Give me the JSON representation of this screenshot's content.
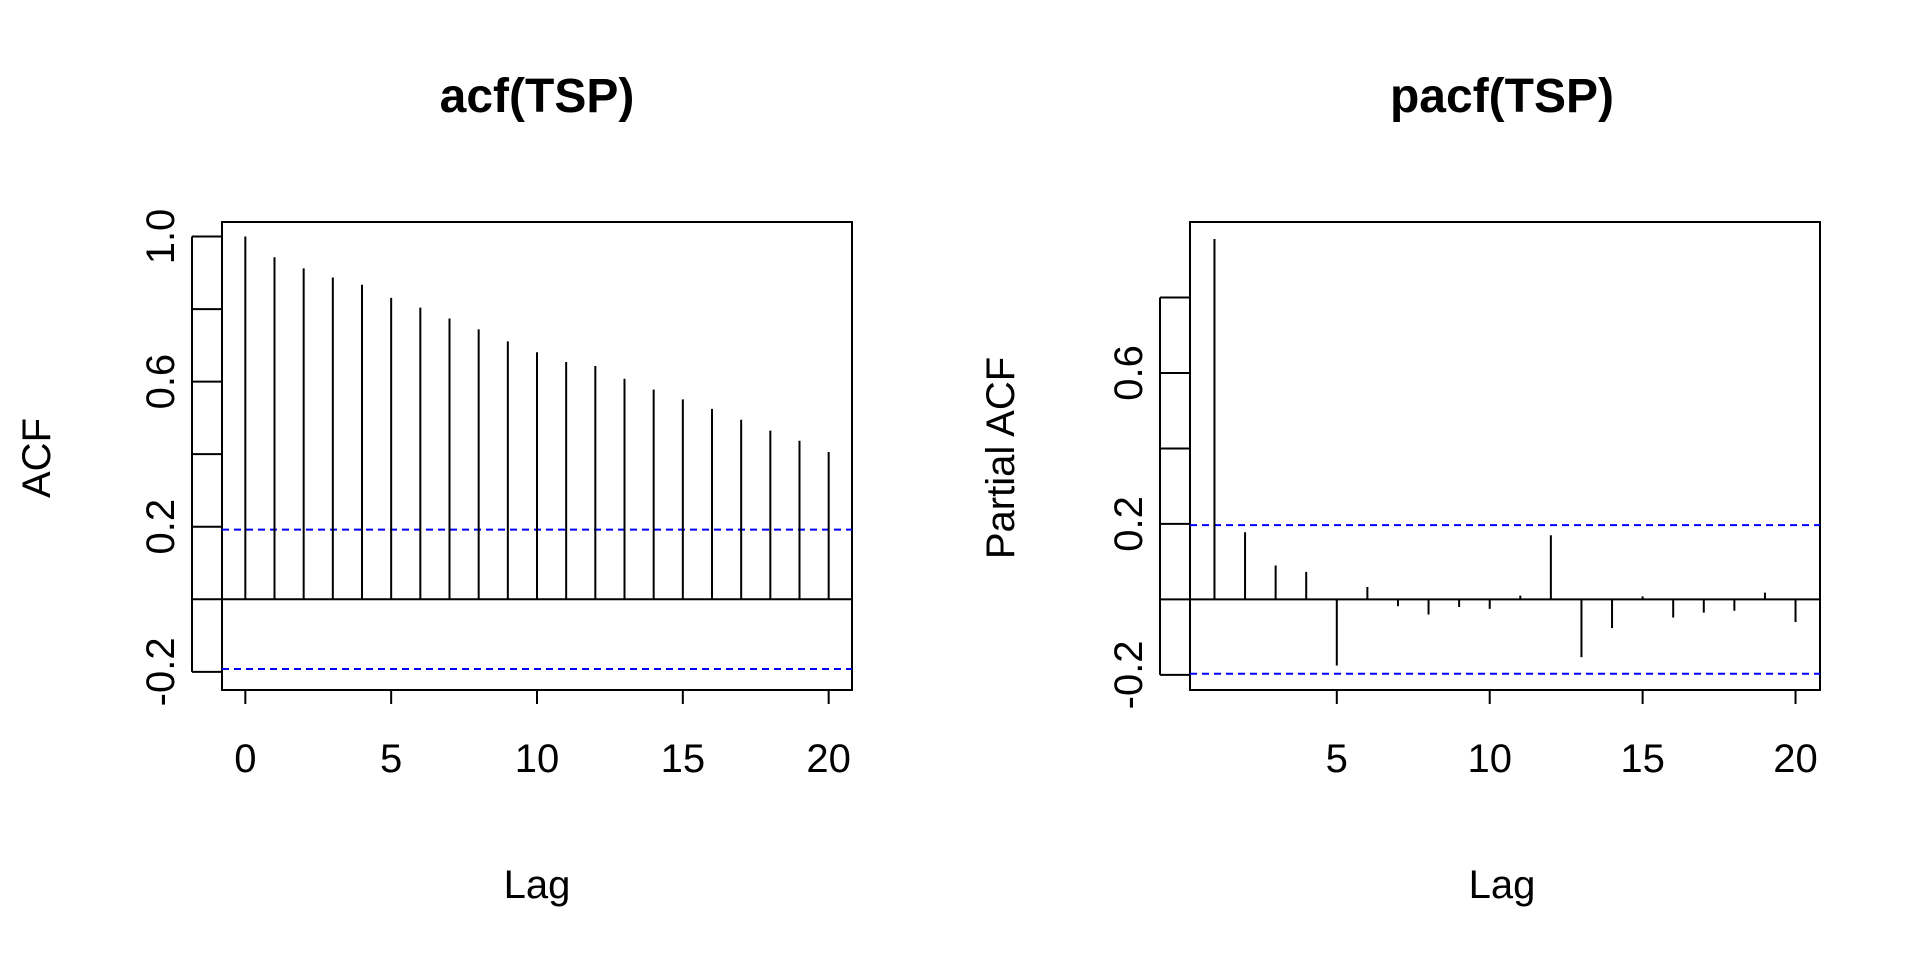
{
  "chart_data": [
    {
      "id": "acf",
      "type": "bar",
      "title": "acf(TSP)",
      "xlabel": "Lag",
      "ylabel": "ACF",
      "xlim": [
        -0.8,
        20.8
      ],
      "ylim": [
        -0.25,
        1.04
      ],
      "x_ticks": [
        0,
        5,
        10,
        15,
        20
      ],
      "y_ticks": [
        -0.2,
        0.2,
        0.6,
        1.0
      ],
      "y_ticks_minor": [
        0.0,
        0.4,
        0.8
      ],
      "y_tick_labels": [
        "-0.2",
        "0.2",
        "0.6",
        "1.0"
      ],
      "ci": 0.192,
      "colors": {
        "bars": "#000000",
        "ci": "#0000ff"
      },
      "lags": [
        0,
        1,
        2,
        3,
        4,
        5,
        6,
        7,
        8,
        9,
        10,
        11,
        12,
        13,
        14,
        15,
        16,
        17,
        18,
        19,
        20
      ],
      "values": [
        1.0,
        0.943,
        0.912,
        0.887,
        0.867,
        0.831,
        0.804,
        0.774,
        0.744,
        0.711,
        0.681,
        0.654,
        0.643,
        0.608,
        0.578,
        0.551,
        0.525,
        0.495,
        0.465,
        0.437,
        0.406
      ]
    },
    {
      "id": "pacf",
      "type": "bar",
      "title": "pacf(TSP)",
      "xlabel": "Lag",
      "ylabel": "Partial ACF",
      "xlim": [
        0.2,
        20.8
      ],
      "ylim": [
        -0.24,
        1.0
      ],
      "x_ticks": [
        5,
        10,
        15,
        20
      ],
      "y_ticks": [
        -0.2,
        0.2,
        0.6
      ],
      "y_ticks_minor": [
        0.0,
        0.4,
        0.8
      ],
      "y_tick_labels": [
        "-0.2",
        "0.2",
        "0.6"
      ],
      "ci": 0.197,
      "colors": {
        "bars": "#000000",
        "ci": "#0000ff"
      },
      "lags": [
        1,
        2,
        3,
        4,
        5,
        6,
        7,
        8,
        9,
        10,
        11,
        12,
        13,
        14,
        15,
        16,
        17,
        18,
        19,
        20
      ],
      "values": [
        0.955,
        0.178,
        0.09,
        0.073,
        -0.175,
        0.033,
        -0.018,
        -0.04,
        -0.02,
        -0.025,
        0.01,
        0.17,
        -0.153,
        -0.076,
        0.008,
        -0.048,
        -0.035,
        -0.03,
        0.018,
        -0.06
      ]
    }
  ]
}
